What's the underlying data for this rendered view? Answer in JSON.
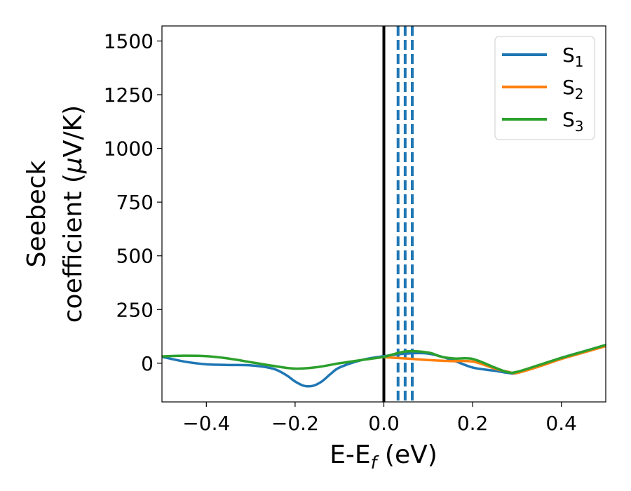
{
  "chart_data": {
    "type": "line",
    "title": "",
    "xlabel": "E-E",
    "xlabel_subscript": "f",
    "xlabel_unit": " (eV)",
    "ylabel_line1": "Seebeck",
    "ylabel_line2_prefix": "coefficient  (",
    "ylabel_mu": "μ",
    "ylabel_line2_suffix": "V/K)",
    "xlim": [
      -0.5,
      0.5
    ],
    "ylim": [
      -180,
      1570
    ],
    "xticks": [
      -0.4,
      -0.2,
      0.0,
      0.2,
      0.4
    ],
    "xtick_labels": [
      "−0.4",
      "−0.2",
      "0.0",
      "0.2",
      "0.4"
    ],
    "yticks": [
      0,
      250,
      500,
      750,
      1000,
      1250,
      1500
    ],
    "ytick_labels": [
      "0",
      "250",
      "500",
      "750",
      "1000",
      "1250",
      "1500"
    ],
    "grid": false,
    "legend_position": "top-right",
    "fermi_line_x": 0.0,
    "dashed_lines_x": [
      0.032,
      0.048,
      0.064
    ],
    "series": [
      {
        "name": "S",
        "subscript": "1",
        "color": "#1f77b4",
        "x": [
          -0.5,
          -0.45,
          -0.4,
          -0.35,
          -0.3,
          -0.25,
          -0.22,
          -0.2,
          -0.18,
          -0.16,
          -0.14,
          -0.12,
          -0.1,
          -0.05,
          0.0,
          0.05,
          0.1,
          0.15,
          0.2,
          0.25,
          0.28,
          0.3,
          0.35,
          0.4,
          0.45,
          0.5
        ],
        "values": [
          30,
          8,
          -5,
          -8,
          -10,
          -25,
          -55,
          -85,
          -105,
          -105,
          -85,
          -50,
          -20,
          15,
          33,
          45,
          45,
          18,
          -20,
          -35,
          -45,
          -45,
          -10,
          25,
          55,
          85
        ]
      },
      {
        "name": "S",
        "subscript": "2",
        "color": "#ff7f0e",
        "x": [
          0.0,
          0.05,
          0.1,
          0.15,
          0.2,
          0.25,
          0.28,
          0.3,
          0.35,
          0.4,
          0.45,
          0.5
        ],
        "values": [
          28,
          22,
          15,
          10,
          8,
          -25,
          -40,
          -45,
          -15,
          20,
          50,
          80
        ]
      },
      {
        "name": "S",
        "subscript": "3",
        "color": "#2ca02c",
        "x": [
          -0.5,
          -0.45,
          -0.4,
          -0.35,
          -0.3,
          -0.25,
          -0.2,
          -0.15,
          -0.1,
          -0.05,
          0.0,
          0.05,
          0.1,
          0.13,
          0.16,
          0.2,
          0.25,
          0.28,
          0.3,
          0.35,
          0.4,
          0.45,
          0.5
        ],
        "values": [
          32,
          35,
          33,
          22,
          5,
          -12,
          -25,
          -18,
          0,
          15,
          30,
          55,
          50,
          30,
          22,
          20,
          -20,
          -42,
          -40,
          -8,
          25,
          55,
          85
        ]
      }
    ]
  }
}
